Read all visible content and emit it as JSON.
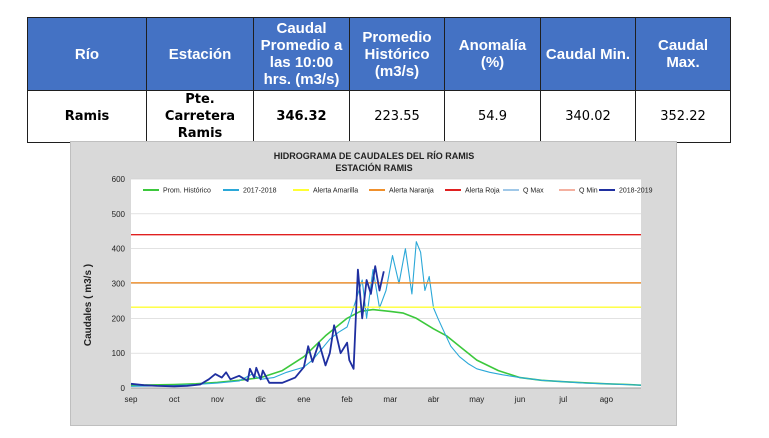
{
  "table": {
    "headers": [
      "Río",
      "Estación",
      "Caudal Promedio a las 10:00 hrs. (m3/s)",
      "Promedio Histórico (m3/s)",
      "Anomalía (%)",
      "Caudal Min.",
      "Caudal Max."
    ],
    "row": {
      "rio": "Ramis",
      "estacion": "Pte. Carretera\nRamis",
      "caudal_promedio": "346.32",
      "promedio_historico": "223.55",
      "anomalia": "54.9",
      "caudal_min": "340.02",
      "caudal_max": "352.22"
    },
    "header_color": "#4472c4"
  },
  "chart_data": {
    "type": "line",
    "title": "HIDROGRAMA DE CAUDALES DEL RÍO RAMIS",
    "subtitle": "ESTACIÓN RAMIS",
    "xlabel": "",
    "ylabel": "Caudales ( m3/s )",
    "ylim": [
      0,
      600
    ],
    "yticks": [
      0,
      100,
      200,
      300,
      400,
      500,
      600
    ],
    "x_tick_labels": [
      "sep",
      "oct",
      "nov",
      "dic",
      "ene",
      "feb",
      "mar",
      "abr",
      "may",
      "jun",
      "jul",
      "ago"
    ],
    "x_unit": "months from start of September",
    "xlim": [
      0,
      11.8
    ],
    "grid": true,
    "legend_position": "top",
    "series": [
      {
        "name": "Prom. Histórico",
        "color": "#3cc83c",
        "x": [
          0,
          0.5,
          1,
          1.5,
          2,
          2.5,
          3,
          3.5,
          4,
          4.5,
          5,
          5.3,
          5.6,
          6,
          6.3,
          6.6,
          7,
          7.3,
          7.6,
          8,
          8.5,
          9,
          9.5,
          10,
          10.5,
          11,
          11.5,
          11.8
        ],
        "y": [
          8,
          9,
          10,
          12,
          16,
          22,
          30,
          50,
          90,
          150,
          200,
          220,
          225,
          220,
          215,
          200,
          170,
          150,
          120,
          80,
          50,
          30,
          22,
          18,
          15,
          12,
          10,
          8
        ]
      },
      {
        "name": "2017-2018",
        "color": "#2ba8d8",
        "x": [
          0,
          0.5,
          1,
          1.5,
          2,
          2.5,
          2.8,
          3,
          3.3,
          3.6,
          4,
          4.2,
          4.4,
          4.6,
          4.8,
          5,
          5.2,
          5.35,
          5.45,
          5.6,
          5.75,
          5.9,
          6.05,
          6.2,
          6.35,
          6.5,
          6.6,
          6.7,
          6.8,
          6.9,
          7,
          7.1,
          7.25,
          7.4,
          7.6,
          7.8,
          8,
          8.3,
          8.6,
          9,
          9.5,
          10,
          10.5,
          11,
          11.8
        ],
        "y": [
          5,
          6,
          7,
          10,
          14,
          20,
          40,
          25,
          30,
          45,
          60,
          80,
          110,
          140,
          160,
          175,
          250,
          310,
          200,
          340,
          230,
          280,
          380,
          300,
          400,
          270,
          420,
          390,
          280,
          320,
          230,
          200,
          160,
          120,
          90,
          70,
          55,
          45,
          38,
          30,
          22,
          18,
          14,
          12,
          8
        ]
      },
      {
        "name": "Alerta Amarilla",
        "color": "#ffff33",
        "x": [
          0,
          11.8
        ],
        "y": [
          232,
          232
        ]
      },
      {
        "name": "Alerta Naranja",
        "color": "#f0902c",
        "x": [
          0,
          11.8
        ],
        "y": [
          302,
          302
        ]
      },
      {
        "name": "Alerta Roja",
        "color": "#e02020",
        "x": [
          0,
          11.8
        ],
        "y": [
          440,
          440
        ]
      },
      {
        "name": "Q Max",
        "color": "#a0c8e8",
        "x": [],
        "y": []
      },
      {
        "name": "Q Min",
        "color": "#f4b0a0",
        "x": [],
        "y": []
      },
      {
        "name": "2018-2019",
        "color": "#1f2fa0",
        "x": [
          0,
          0.3,
          0.6,
          1,
          1.3,
          1.6,
          1.8,
          1.95,
          2.1,
          2.2,
          2.3,
          2.5,
          2.7,
          2.75,
          2.85,
          2.9,
          3.0,
          3.05,
          3.2,
          3.5,
          3.8,
          4.0,
          4.1,
          4.2,
          4.35,
          4.5,
          4.6,
          4.7,
          4.85,
          5.0,
          5.05,
          5.15,
          5.25,
          5.35,
          5.45,
          5.55,
          5.65,
          5.75,
          5.85
        ],
        "y": [
          12,
          8,
          6,
          5,
          6,
          10,
          25,
          40,
          30,
          45,
          25,
          35,
          20,
          55,
          30,
          58,
          25,
          50,
          15,
          15,
          30,
          60,
          120,
          75,
          130,
          65,
          100,
          180,
          100,
          130,
          80,
          55,
          340,
          200,
          310,
          270,
          350,
          280,
          335
        ]
      }
    ],
    "colors": {
      "chart_bg": "#d9d9d9",
      "plot_bg": "#ffffff",
      "grid": "#d0d0d0"
    }
  }
}
